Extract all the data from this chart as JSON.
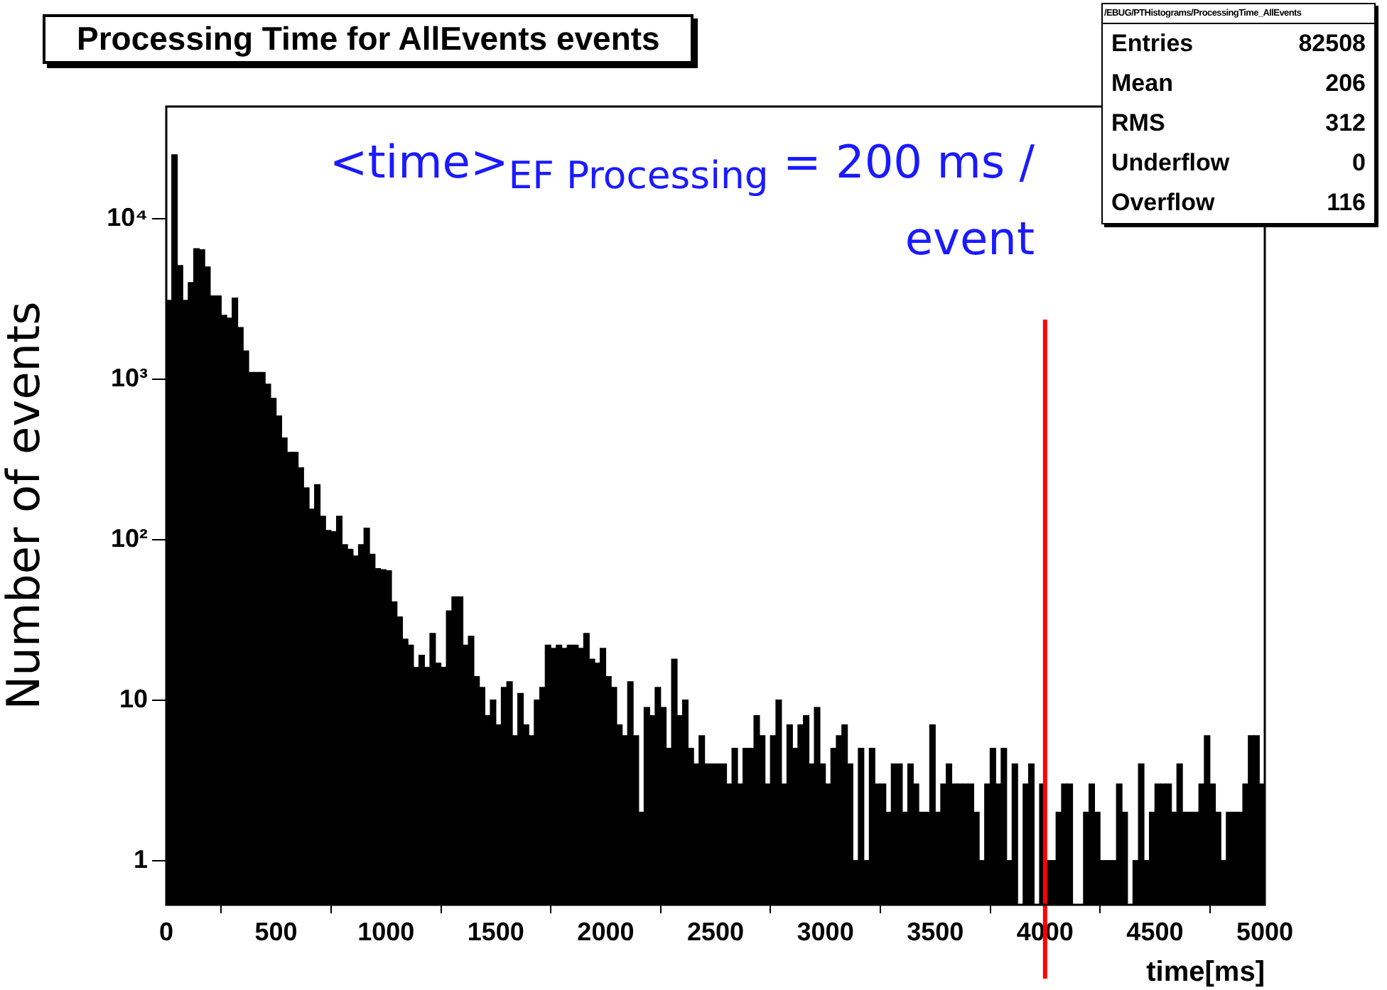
{
  "chart_data": {
    "type": "histogram",
    "title": "Processing Time for AllEvents events",
    "xlabel": "time[ms]",
    "ylabel": "Number of events",
    "annotations": [
      "<time>$_{EF Processing}$ = 200 ms / event",
      "/EBUG/PTHistograms/ProcessingTime_AllEvents",
      "Entries",
      "82508",
      "Mean",
      "206",
      "RMS",
      "312",
      "Underflow",
      "0",
      "Overflow",
      "116"
    ],
    "bins": [
      0,
      25,
      50,
      75,
      100,
      125,
      150,
      175,
      200,
      225,
      250,
      275,
      300,
      325,
      350,
      375,
      400,
      425,
      450,
      475,
      500,
      525,
      550,
      575,
      600,
      625,
      650,
      675,
      700,
      725,
      750,
      775,
      800,
      825,
      850,
      875,
      900,
      925,
      950,
      975,
      1000,
      1025,
      1050,
      1075,
      1100,
      1125,
      1150,
      1175,
      1200,
      1225,
      1250,
      1275,
      1300,
      1325,
      1350,
      1375,
      1400,
      1425,
      1450,
      1475,
      1500,
      1525,
      1550,
      1575,
      1600,
      1625,
      1650,
      1675,
      1700,
      1725,
      1750,
      1775,
      1800,
      1825,
      1850,
      1875,
      1900,
      1925,
      1950,
      1975,
      2000,
      2025,
      2050,
      2075,
      2100,
      2125,
      2150,
      2175,
      2200,
      2225,
      2250,
      2275,
      2300,
      2325,
      2350,
      2375,
      2400,
      2425,
      2450,
      2475,
      2500,
      2525,
      2550,
      2575,
      2600,
      2625,
      2650,
      2675,
      2700,
      2725,
      2750,
      2775,
      2800,
      2825,
      2850,
      2875,
      2900,
      2925,
      2950,
      2975,
      3000,
      3025,
      3050,
      3075,
      3100,
      3125,
      3150,
      3175,
      3200,
      3225,
      3250,
      3275,
      3300,
      3325,
      3350,
      3375,
      3400,
      3425,
      3450,
      3475,
      3500,
      3525,
      3550,
      3575,
      3600,
      3625,
      3650,
      3675,
      3700,
      3725,
      3750,
      3775,
      3800,
      3825,
      3850,
      3875,
      3900,
      3925,
      3950,
      3975,
      4000,
      4025,
      4050,
      4075,
      4100,
      4125,
      4150,
      4175,
      4200,
      4225,
      4250,
      4275,
      4300,
      4325,
      4350,
      4375,
      4400,
      4425,
      4450,
      4475,
      4500,
      4525,
      4550,
      4575,
      4600,
      4625,
      4650,
      4675,
      4700,
      4725,
      4750,
      4775,
      4800,
      4825,
      4850,
      4875,
      4900,
      4925,
      4950,
      4975,
      5000
    ],
    "values": [
      3100,
      25000,
      5100,
      3100,
      4000,
      6500,
      6400,
      5000,
      3300,
      3300,
      2500,
      2400,
      3200,
      2100,
      1500,
      1100,
      1100,
      1100,
      930,
      760,
      590,
      430,
      350,
      350,
      280,
      210,
      155,
      220,
      140,
      114,
      112,
      140,
      93,
      87,
      79,
      93,
      118,
      81,
      66,
      65,
      64,
      41,
      33,
      24,
      22,
      16,
      19,
      16,
      26,
      17,
      16,
      36,
      44,
      44,
      22,
      25,
      14,
      12,
      8,
      10,
      7,
      12,
      13,
      6,
      11,
      7,
      6,
      10,
      12,
      22,
      21,
      22,
      21,
      22,
      22,
      21,
      26,
      18,
      17,
      21,
      14,
      12,
      7,
      6,
      13,
      6,
      2,
      9,
      8,
      12,
      9,
      5,
      18,
      8,
      10,
      5,
      4,
      6,
      4,
      4,
      4,
      4,
      3,
      5,
      3,
      5,
      5,
      8,
      6,
      3,
      6,
      10,
      3,
      7,
      5,
      7,
      8,
      4,
      9,
      4,
      3,
      5,
      6,
      7,
      4,
      1,
      5,
      1,
      5,
      3,
      3,
      2,
      4,
      4,
      2,
      4,
      3,
      2,
      2,
      7,
      2,
      3,
      4,
      3,
      3,
      3,
      3,
      2,
      1,
      3,
      5,
      3,
      5,
      1,
      4,
      null,
      3,
      4,
      null,
      3,
      1,
      1,
      2,
      3,
      3,
      null,
      null,
      2,
      3,
      2,
      1,
      1,
      1,
      3,
      2,
      null,
      1,
      4,
      1,
      2,
      3,
      3,
      3,
      2,
      4,
      2,
      2,
      2,
      3,
      6,
      3,
      2,
      1,
      2,
      2,
      2,
      3,
      6,
      6,
      3
    ],
    "color": "#000000",
    "log": "y",
    "xlim": [
      0,
      5000
    ],
    "ylim": [
      0.53,
      50000
    ],
    "xticks": [
      0,
      500,
      1000,
      1500,
      2000,
      2500,
      3000,
      3500,
      4000,
      4500,
      5000
    ],
    "yticks": [
      1,
      10,
      {
        "value": 100,
        "label": "10²"
      },
      {
        "value": 1000,
        "label": "10³"
      },
      {
        "value": 10000,
        "label": "10⁴"
      }
    ],
    "ref_lines": [
      {
        "axis": "x",
        "value": 4000,
        "color": "#ff0000"
      }
    ]
  }
}
